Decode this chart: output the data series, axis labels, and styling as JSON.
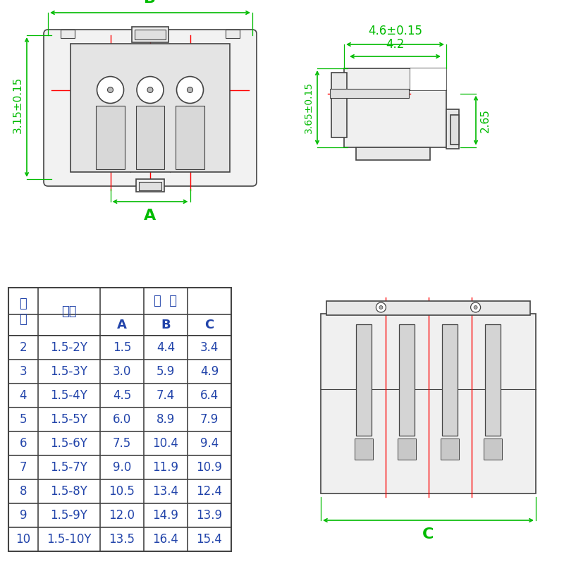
{
  "bg_color": "#ffffff",
  "gc": "#00bb00",
  "rc": "#ff0000",
  "dc": "#444444",
  "tc": "#2244aa",
  "dim_B": "B",
  "dim_A": "A",
  "dim_C": "C",
  "dim_315": "3.15±0.15",
  "dim_46": "4.6±0.15",
  "dim_42": "4.2",
  "dim_365": "3.65±0.15",
  "dim_265": "2.65",
  "header1_col0": "位\n数",
  "header1_col1": "型号",
  "header1_span": "尺  寸",
  "header2_A": "A",
  "header2_B": "B",
  "header2_C": "C",
  "rows": [
    [
      "2",
      "1.5-2Y",
      "1.5",
      "4.4",
      "3.4"
    ],
    [
      "3",
      "1.5-3Y",
      "3.0",
      "5.9",
      "4.9"
    ],
    [
      "4",
      "1.5-4Y",
      "4.5",
      "7.4",
      "6.4"
    ],
    [
      "5",
      "1.5-5Y",
      "6.0",
      "8.9",
      "7.9"
    ],
    [
      "6",
      "1.5-6Y",
      "7.5",
      "10.4",
      "9.4"
    ],
    [
      "7",
      "1.5-7Y",
      "9.0",
      "11.9",
      "10.9"
    ],
    [
      "8",
      "1.5-8Y",
      "10.5",
      "13.4",
      "12.4"
    ],
    [
      "9",
      "1.5-9Y",
      "12.0",
      "14.9",
      "13.9"
    ],
    [
      "10",
      "1.5-10Y",
      "13.5",
      "16.4",
      "15.4"
    ]
  ]
}
